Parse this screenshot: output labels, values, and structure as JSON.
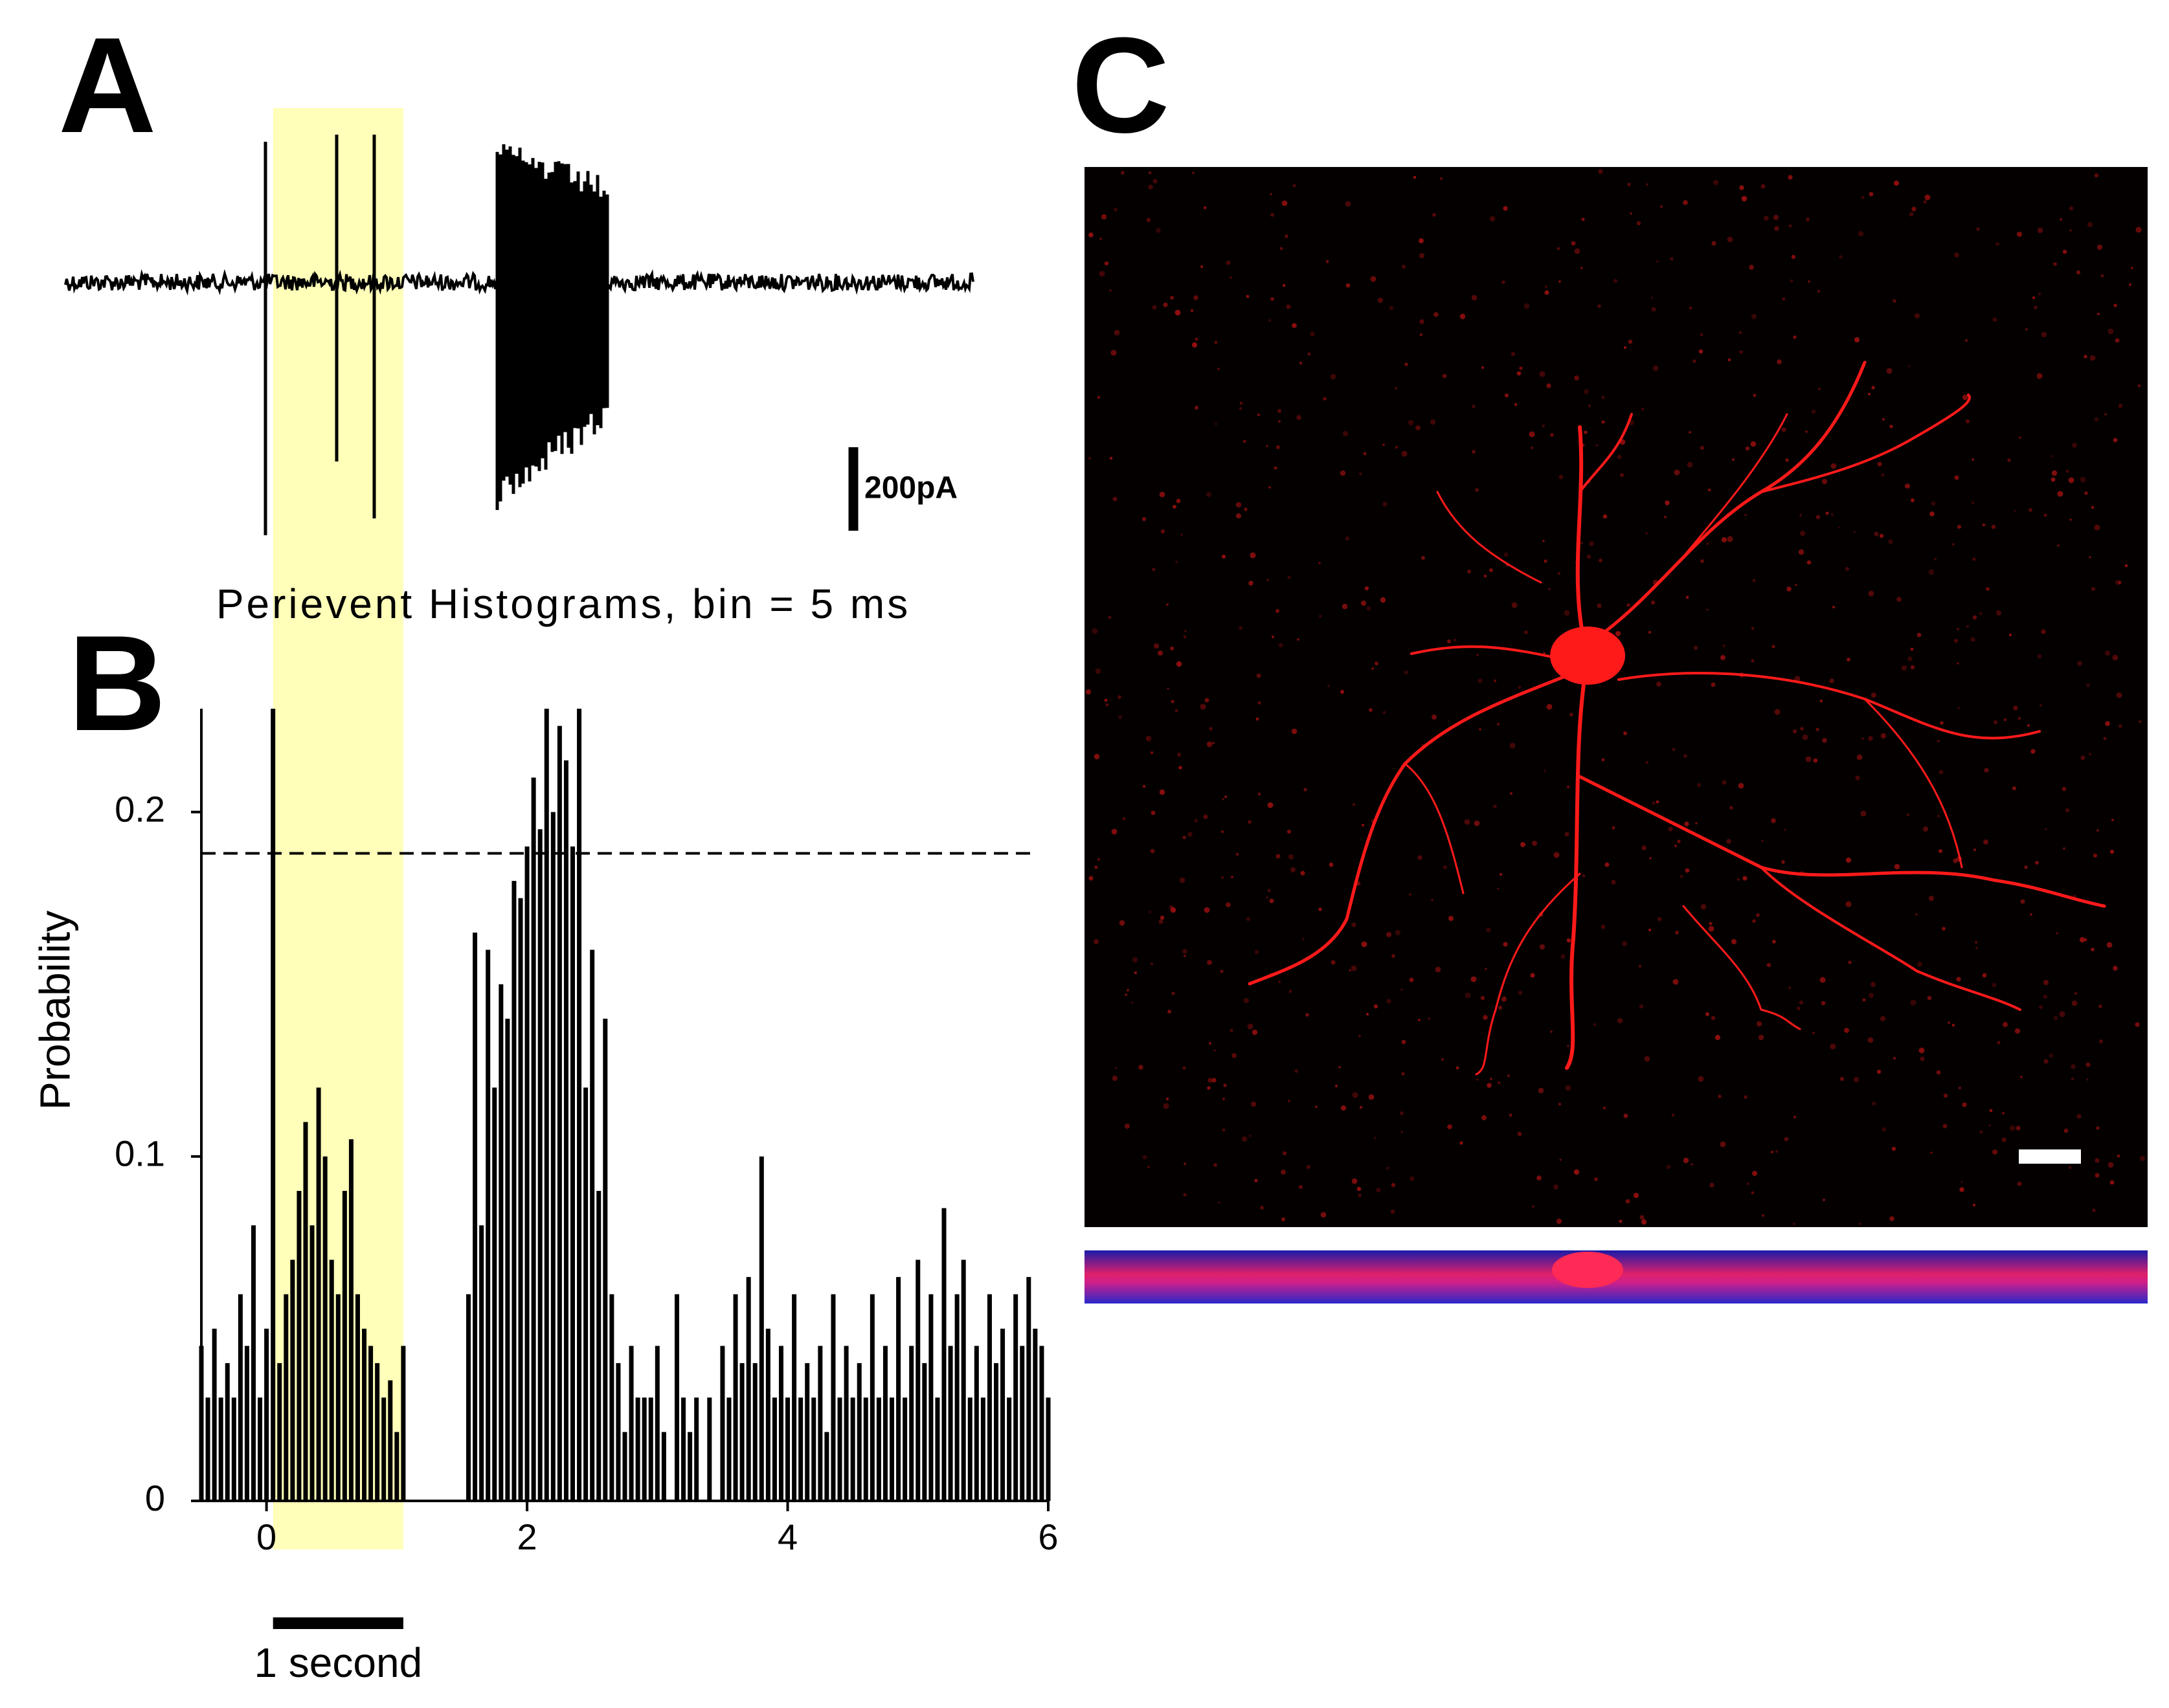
{
  "panels": [
    "A",
    "B",
    "C"
  ],
  "trace": {
    "scale_label": "200pA"
  },
  "chart_data": {
    "type": "bar",
    "title": "Perievent Histograms, bin = 5 ms",
    "y_label": "Probability",
    "color": "#000000",
    "xlim": [
      -0.5,
      6
    ],
    "ylim": [
      0,
      0.23
    ],
    "xticks": [
      0,
      2,
      4,
      6
    ],
    "yticks": [
      0,
      0.1,
      0.2
    ],
    "reference_line": {
      "value": 0.188,
      "style": "dashed"
    },
    "highlight": {
      "range": [
        0.05,
        1.05
      ],
      "color": "#ffff80"
    },
    "scale_bar": {
      "label": "1 second",
      "length": 1
    },
    "x": [
      -0.5,
      -0.45,
      -0.4,
      -0.35,
      -0.3,
      -0.25,
      -0.2,
      -0.15,
      -0.1,
      -0.05,
      0,
      0.05,
      0.1,
      0.15,
      0.2,
      0.25,
      0.3,
      0.35,
      0.4,
      0.45,
      0.5,
      0.55,
      0.6,
      0.65,
      0.7,
      0.75,
      0.8,
      0.85,
      0.9,
      0.95,
      1.0,
      1.05,
      1.1,
      1.15,
      1.2,
      1.25,
      1.3,
      1.35,
      1.4,
      1.45,
      1.5,
      1.55,
      1.6,
      1.65,
      1.7,
      1.75,
      1.8,
      1.85,
      1.9,
      1.95,
      2.0,
      2.05,
      2.1,
      2.15,
      2.2,
      2.25,
      2.3,
      2.35,
      2.4,
      2.45,
      2.5,
      2.55,
      2.6,
      2.65,
      2.7,
      2.75,
      2.8,
      2.85,
      2.9,
      2.95,
      3.0,
      3.05,
      3.1,
      3.15,
      3.2,
      3.25,
      3.3,
      3.35,
      3.4,
      3.45,
      3.5,
      3.55,
      3.6,
      3.65,
      3.7,
      3.75,
      3.8,
      3.85,
      3.9,
      3.95,
      4.0,
      4.05,
      4.1,
      4.15,
      4.2,
      4.25,
      4.3,
      4.35,
      4.4,
      4.45,
      4.5,
      4.55,
      4.6,
      4.65,
      4.7,
      4.75,
      4.8,
      4.85,
      4.9,
      4.95,
      5.0,
      5.05,
      5.1,
      5.15,
      5.2,
      5.25,
      5.3,
      5.35,
      5.4,
      5.45,
      5.5,
      5.55,
      5.6,
      5.65,
      5.7,
      5.75,
      5.8,
      5.85,
      5.9,
      5.95,
      6.0
    ],
    "values": [
      0.045,
      0.03,
      0.05,
      0.03,
      0.04,
      0.03,
      0.06,
      0.045,
      0.08,
      0.03,
      0.05,
      0.23,
      0.04,
      0.06,
      0.07,
      0.09,
      0.11,
      0.08,
      0.12,
      0.1,
      0.07,
      0.06,
      0.09,
      0.105,
      0.06,
      0.05,
      0.045,
      0.04,
      0.03,
      0.035,
      0.02,
      0.045,
      0,
      0,
      0,
      0,
      0,
      0,
      0,
      0,
      0,
      0.06,
      0.165,
      0.08,
      0.16,
      0.12,
      0.15,
      0.14,
      0.18,
      0.175,
      0.19,
      0.21,
      0.195,
      0.23,
      0.2,
      0.225,
      0.215,
      0.19,
      0.23,
      0.12,
      0.16,
      0.09,
      0.14,
      0.06,
      0.04,
      0.02,
      0.045,
      0.03,
      0.03,
      0.03,
      0.045,
      0.02,
      0,
      0.06,
      0.03,
      0.02,
      0.03,
      0,
      0.03,
      0,
      0.045,
      0.03,
      0.06,
      0.04,
      0.065,
      0.04,
      0.1,
      0.05,
      0.03,
      0.045,
      0.03,
      0.06,
      0.03,
      0.04,
      0.03,
      0.045,
      0.02,
      0.06,
      0.03,
      0.045,
      0.03,
      0.04,
      0.03,
      0.06,
      0.03,
      0.045,
      0.03,
      0.065,
      0.03,
      0.045,
      0.07,
      0.04,
      0.06,
      0.03,
      0.085,
      0.045,
      0.06,
      0.07,
      0.03,
      0.045,
      0.03,
      0.06,
      0.04,
      0.05,
      0.03,
      0.06,
      0.045,
      0.065,
      0.05,
      0.045,
      0.03
    ]
  }
}
